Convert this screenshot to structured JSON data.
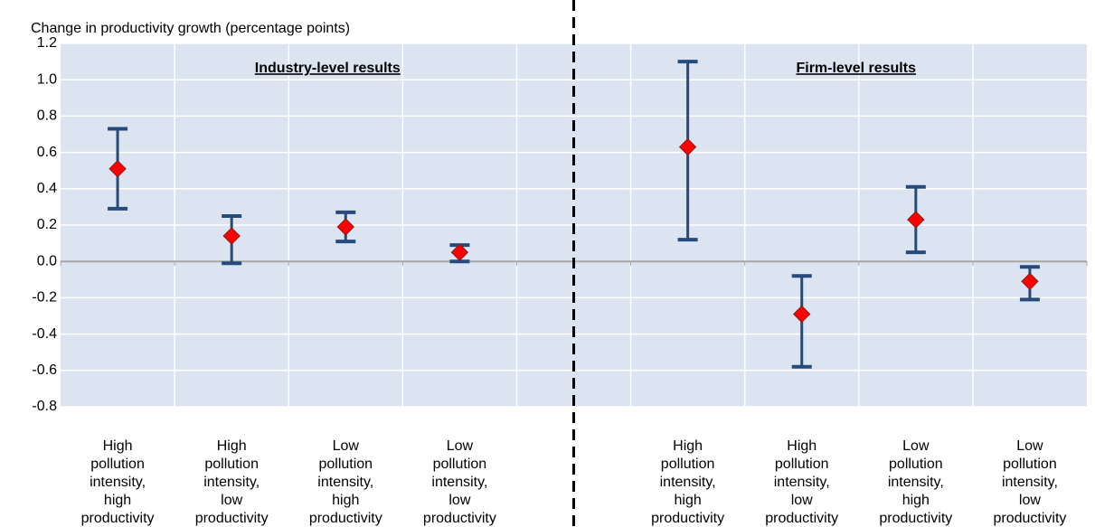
{
  "chart_data": {
    "type": "interval",
    "title": "Change in productivity growth (percentage points)",
    "annotations": [
      "Industry-level results",
      "Firm-level results"
    ],
    "categories": [
      "High pollution intensity, high productivity",
      "High pollution intensity, low productivity",
      "Low pollution intensity, high productivity",
      "Low pollution intensity, low productivity",
      null,
      "High pollution intensity, high productivity",
      "High pollution intensity, low productivity",
      "Low pollution intensity, high productivity",
      "Low pollution intensity, low productivity"
    ],
    "values": [
      0.51,
      0.14,
      0.19,
      0.05,
      null,
      0.63,
      -0.29,
      0.23,
      -0.11
    ],
    "lower": [
      0.29,
      -0.01,
      0.11,
      0.0,
      null,
      0.12,
      -0.58,
      0.05,
      -0.21
    ],
    "upper": [
      0.73,
      0.25,
      0.27,
      0.09,
      null,
      1.1,
      -0.08,
      0.41,
      -0.03
    ],
    "color": "#ff0000",
    "error_color": "#254a7c",
    "background": "#dbe4f0",
    "ylim": [
      -0.8,
      1.2
    ],
    "yticks": [
      -0.8,
      -0.6,
      -0.4,
      -0.2,
      {
        "value": 0,
        "label": "0.0"
      },
      0.2,
      0.4,
      0.6,
      0.8,
      {
        "value": 1,
        "label": "1.0"
      },
      1.2
    ],
    "grid": true
  }
}
